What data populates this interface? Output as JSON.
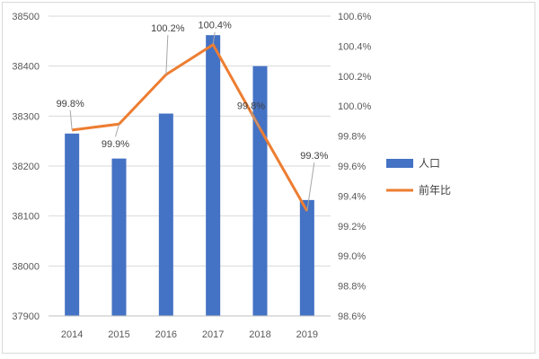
{
  "chart_data": {
    "type": "bar+line",
    "categories": [
      "2014",
      "2015",
      "2016",
      "2017",
      "2018",
      "2019"
    ],
    "series": [
      {
        "name": "人口",
        "type": "bar",
        "axis": "left",
        "values": [
          38265,
          38215,
          38305,
          38462,
          38400,
          38132
        ]
      },
      {
        "name": "前年比",
        "type": "line",
        "axis": "right",
        "values": [
          99.84,
          99.88,
          100.21,
          100.41,
          99.85,
          99.3
        ],
        "data_labels": [
          "99.8%",
          "99.9%",
          "100.2%",
          "100.4%",
          "99.8%",
          "99.3%"
        ]
      }
    ],
    "y_left": {
      "ylim": [
        37900,
        38500
      ],
      "ticks": [
        "37900",
        "38000",
        "38100",
        "38200",
        "38300",
        "38400",
        "38500"
      ]
    },
    "y_right": {
      "ylim": [
        98.6,
        100.6
      ],
      "ticks": [
        "98.6%",
        "98.8%",
        "99.0%",
        "99.2%",
        "99.4%",
        "99.6%",
        "99.8%",
        "100.0%",
        "100.2%",
        "100.4%",
        "100.6%"
      ]
    },
    "grid": true,
    "legend_position": "right",
    "colors": {
      "bar": "#4472c4",
      "line": "#ed7d31",
      "grid": "#d9d9d9",
      "leader": "#a6a6a6"
    }
  }
}
